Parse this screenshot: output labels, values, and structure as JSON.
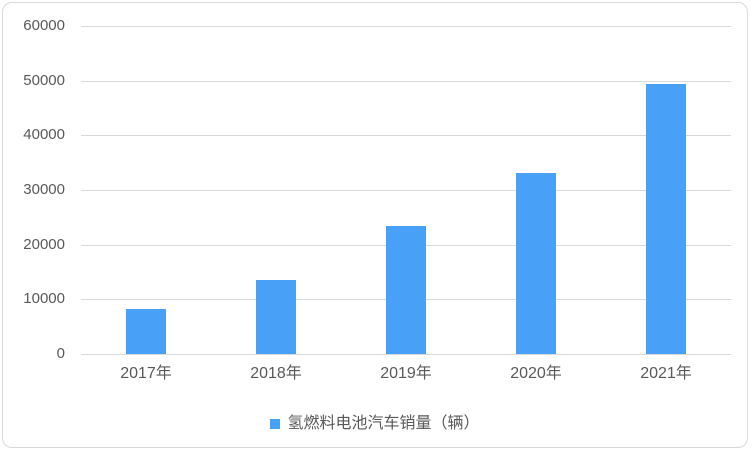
{
  "chart_data": {
    "type": "bar",
    "title": "",
    "categories": [
      "2017年",
      "2018年",
      "2019年",
      "2020年",
      "2021年"
    ],
    "series": [
      {
        "name": "氢燃料电池汽车销量（辆）",
        "values": [
          8200,
          13500,
          23500,
          33200,
          49400
        ]
      }
    ],
    "xlabel": "",
    "ylabel": "",
    "ylim": [
      0,
      60000
    ],
    "yticks": [
      0,
      10000,
      20000,
      30000,
      40000,
      50000,
      60000
    ],
    "grid": true,
    "legend_position": "bottom",
    "colors": {
      "bar": "#48a1f7",
      "gridline": "#d9d9d9",
      "border": "#d9d9d9",
      "text": "#595959",
      "background": "#ffffff"
    }
  },
  "legend": {
    "label": "氢燃料电池汽车销量（辆）"
  }
}
